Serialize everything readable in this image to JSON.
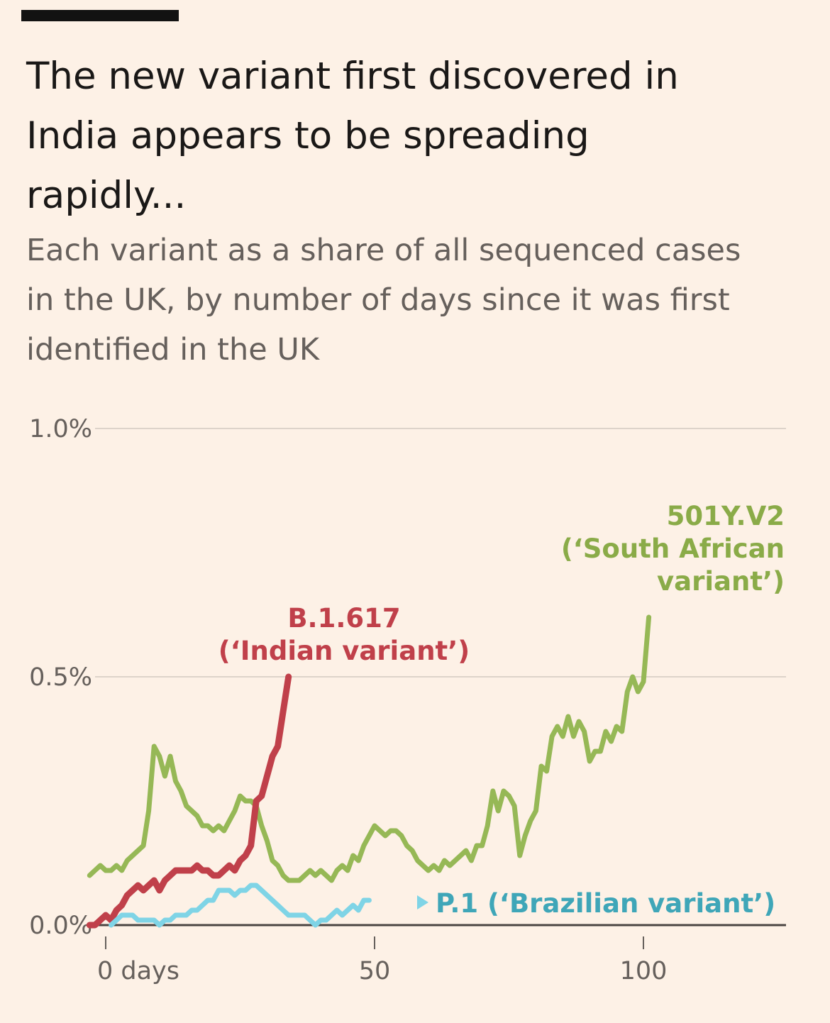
{
  "header": {
    "title": "The new variant first discovered in India appears to be spreading rapidly...",
    "subtitle": "Each variant as a share of all sequenced cases in the UK, by number of days since it was first identified in the UK"
  },
  "chart_data": {
    "type": "line",
    "xlim": [
      0,
      127
    ],
    "ylim": [
      0,
      1.0
    ],
    "x_ticks": [
      {
        "value": 0,
        "label": "0 days"
      },
      {
        "value": 50,
        "label": "50"
      },
      {
        "value": 100,
        "label": "100"
      }
    ],
    "y_ticks": [
      {
        "value": 0,
        "label": "0.0%"
      },
      {
        "value": 0.5,
        "label": "0.5%"
      },
      {
        "value": 1.0,
        "label": "1.0%"
      }
    ],
    "grid": true,
    "series": [
      {
        "name": "501Y.V2 (‘South African variant’)",
        "label_lines": [
          "501Y.V2",
          "(‘South African",
          "variant’)"
        ],
        "color": "#96b856",
        "values": [
          [
            -3,
            0.1
          ],
          [
            -2,
            0.11
          ],
          [
            -1,
            0.12
          ],
          [
            0,
            0.11
          ],
          [
            1,
            0.11
          ],
          [
            2,
            0.12
          ],
          [
            3,
            0.11
          ],
          [
            4,
            0.13
          ],
          [
            5,
            0.14
          ],
          [
            6,
            0.15
          ],
          [
            7,
            0.16
          ],
          [
            8,
            0.23
          ],
          [
            9,
            0.36
          ],
          [
            10,
            0.34
          ],
          [
            11,
            0.3
          ],
          [
            12,
            0.34
          ],
          [
            13,
            0.29
          ],
          [
            14,
            0.27
          ],
          [
            15,
            0.24
          ],
          [
            16,
            0.23
          ],
          [
            17,
            0.22
          ],
          [
            18,
            0.2
          ],
          [
            19,
            0.2
          ],
          [
            20,
            0.19
          ],
          [
            21,
            0.2
          ],
          [
            22,
            0.19
          ],
          [
            23,
            0.21
          ],
          [
            24,
            0.23
          ],
          [
            25,
            0.26
          ],
          [
            26,
            0.25
          ],
          [
            27,
            0.25
          ],
          [
            28,
            0.24
          ],
          [
            29,
            0.2
          ],
          [
            30,
            0.17
          ],
          [
            31,
            0.13
          ],
          [
            32,
            0.12
          ],
          [
            33,
            0.1
          ],
          [
            34,
            0.09
          ],
          [
            35,
            0.09
          ],
          [
            36,
            0.09
          ],
          [
            37,
            0.1
          ],
          [
            38,
            0.11
          ],
          [
            39,
            0.1
          ],
          [
            40,
            0.11
          ],
          [
            41,
            0.1
          ],
          [
            42,
            0.09
          ],
          [
            43,
            0.11
          ],
          [
            44,
            0.12
          ],
          [
            45,
            0.11
          ],
          [
            46,
            0.14
          ],
          [
            47,
            0.13
          ],
          [
            48,
            0.16
          ],
          [
            49,
            0.18
          ],
          [
            50,
            0.2
          ],
          [
            51,
            0.19
          ],
          [
            52,
            0.18
          ],
          [
            53,
            0.19
          ],
          [
            54,
            0.19
          ],
          [
            55,
            0.18
          ],
          [
            56,
            0.16
          ],
          [
            57,
            0.15
          ],
          [
            58,
            0.13
          ],
          [
            59,
            0.12
          ],
          [
            60,
            0.11
          ],
          [
            61,
            0.12
          ],
          [
            62,
            0.11
          ],
          [
            63,
            0.13
          ],
          [
            64,
            0.12
          ],
          [
            65,
            0.13
          ],
          [
            66,
            0.14
          ],
          [
            67,
            0.15
          ],
          [
            68,
            0.13
          ],
          [
            69,
            0.16
          ],
          [
            70,
            0.16
          ],
          [
            71,
            0.2
          ],
          [
            72,
            0.27
          ],
          [
            73,
            0.23
          ],
          [
            74,
            0.27
          ],
          [
            75,
            0.26
          ],
          [
            76,
            0.24
          ],
          [
            77,
            0.14
          ],
          [
            78,
            0.18
          ],
          [
            79,
            0.21
          ],
          [
            80,
            0.23
          ],
          [
            81,
            0.32
          ],
          [
            82,
            0.31
          ],
          [
            83,
            0.38
          ],
          [
            84,
            0.4
          ],
          [
            85,
            0.38
          ],
          [
            86,
            0.42
          ],
          [
            87,
            0.38
          ],
          [
            88,
            0.41
          ],
          [
            89,
            0.39
          ],
          [
            90,
            0.33
          ],
          [
            91,
            0.35
          ],
          [
            92,
            0.35
          ],
          [
            93,
            0.39
          ],
          [
            94,
            0.37
          ],
          [
            95,
            0.4
          ],
          [
            96,
            0.39
          ],
          [
            97,
            0.47
          ],
          [
            98,
            0.5
          ],
          [
            99,
            0.47
          ],
          [
            100,
            0.49
          ],
          [
            101,
            0.62
          ]
        ]
      },
      {
        "name": "B.1.617 (‘Indian variant’)",
        "label_lines": [
          "B.1.617",
          "(‘Indian variant’)"
        ],
        "color": "#c0404a",
        "values": [
          [
            -3,
            0
          ],
          [
            -2,
            0
          ],
          [
            -1,
            0.01
          ],
          [
            0,
            0.02
          ],
          [
            1,
            0.01
          ],
          [
            2,
            0.03
          ],
          [
            3,
            0.04
          ],
          [
            4,
            0.06
          ],
          [
            5,
            0.07
          ],
          [
            6,
            0.08
          ],
          [
            7,
            0.07
          ],
          [
            8,
            0.08
          ],
          [
            9,
            0.09
          ],
          [
            10,
            0.07
          ],
          [
            11,
            0.09
          ],
          [
            12,
            0.1
          ],
          [
            13,
            0.11
          ],
          [
            14,
            0.11
          ],
          [
            15,
            0.11
          ],
          [
            16,
            0.11
          ],
          [
            17,
            0.12
          ],
          [
            18,
            0.11
          ],
          [
            19,
            0.11
          ],
          [
            20,
            0.1
          ],
          [
            21,
            0.1
          ],
          [
            22,
            0.11
          ],
          [
            23,
            0.12
          ],
          [
            24,
            0.11
          ],
          [
            25,
            0.13
          ],
          [
            26,
            0.14
          ],
          [
            27,
            0.16
          ],
          [
            28,
            0.25
          ],
          [
            29,
            0.26
          ],
          [
            30,
            0.3
          ],
          [
            31,
            0.34
          ],
          [
            32,
            0.36
          ],
          [
            33,
            0.43
          ],
          [
            34,
            0.5
          ]
        ]
      },
      {
        "name": "P.1 (‘Brazilian variant’)",
        "label_lines": [
          "P.1 (‘Brazilian variant’)"
        ],
        "color": "#7fd4e6",
        "values": [
          [
            1,
            0
          ],
          [
            2,
            0.01
          ],
          [
            3,
            0.02
          ],
          [
            4,
            0.02
          ],
          [
            5,
            0.02
          ],
          [
            6,
            0.01
          ],
          [
            7,
            0.01
          ],
          [
            8,
            0.01
          ],
          [
            9,
            0.01
          ],
          [
            10,
            0
          ],
          [
            11,
            0.01
          ],
          [
            12,
            0.01
          ],
          [
            13,
            0.02
          ],
          [
            14,
            0.02
          ],
          [
            15,
            0.02
          ],
          [
            16,
            0.03
          ],
          [
            17,
            0.03
          ],
          [
            18,
            0.04
          ],
          [
            19,
            0.05
          ],
          [
            20,
            0.05
          ],
          [
            21,
            0.07
          ],
          [
            22,
            0.07
          ],
          [
            23,
            0.07
          ],
          [
            24,
            0.06
          ],
          [
            25,
            0.07
          ],
          [
            26,
            0.07
          ],
          [
            27,
            0.08
          ],
          [
            28,
            0.08
          ],
          [
            29,
            0.07
          ],
          [
            30,
            0.06
          ],
          [
            31,
            0.05
          ],
          [
            32,
            0.04
          ],
          [
            33,
            0.03
          ],
          [
            34,
            0.02
          ],
          [
            35,
            0.02
          ],
          [
            36,
            0.02
          ],
          [
            37,
            0.02
          ],
          [
            38,
            0.01
          ],
          [
            39,
            0.0
          ],
          [
            40,
            0.01
          ],
          [
            41,
            0.01
          ],
          [
            42,
            0.02
          ],
          [
            43,
            0.03
          ],
          [
            44,
            0.02
          ],
          [
            45,
            0.03
          ],
          [
            46,
            0.04
          ],
          [
            47,
            0.03
          ],
          [
            48,
            0.05
          ],
          [
            49,
            0.05
          ]
        ]
      }
    ]
  }
}
